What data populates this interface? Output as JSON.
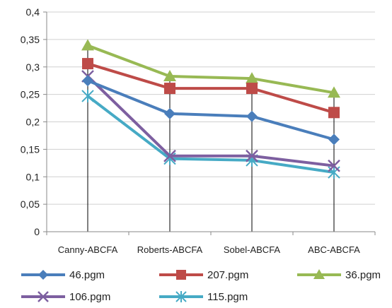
{
  "chart_data": {
    "type": "line",
    "title": "",
    "xlabel": "",
    "ylabel": "",
    "categories": [
      "Canny-ABCFA",
      "Roberts-ABCFA",
      "Sobel-ABCFA",
      "ABC-ABCFA"
    ],
    "ylim": [
      0,
      0.4
    ],
    "yticks": [
      "0",
      "0,05",
      "0,1",
      "0,15",
      "0,2",
      "0,25",
      "0,3",
      "0,35",
      "0,4"
    ],
    "grid": "horizontal",
    "drop_lines": true,
    "legend_position": "bottom",
    "series": [
      {
        "name": "46.pgm",
        "values": [
          0.275,
          0.215,
          0.21,
          0.168
        ],
        "color": "#4a7ebb",
        "marker": "diamond"
      },
      {
        "name": "207.pgm",
        "values": [
          0.306,
          0.261,
          0.261,
          0.217
        ],
        "color": "#be4b48",
        "marker": "square"
      },
      {
        "name": "36.pgm",
        "values": [
          0.339,
          0.283,
          0.279,
          0.253
        ],
        "color": "#98b954",
        "marker": "triangle"
      },
      {
        "name": "106.pgm",
        "values": [
          0.283,
          0.138,
          0.138,
          0.12
        ],
        "color": "#7d5fa0",
        "marker": "x"
      },
      {
        "name": "115.pgm",
        "values": [
          0.247,
          0.133,
          0.13,
          0.108
        ],
        "color": "#46aac5",
        "marker": "asterisk"
      }
    ]
  }
}
